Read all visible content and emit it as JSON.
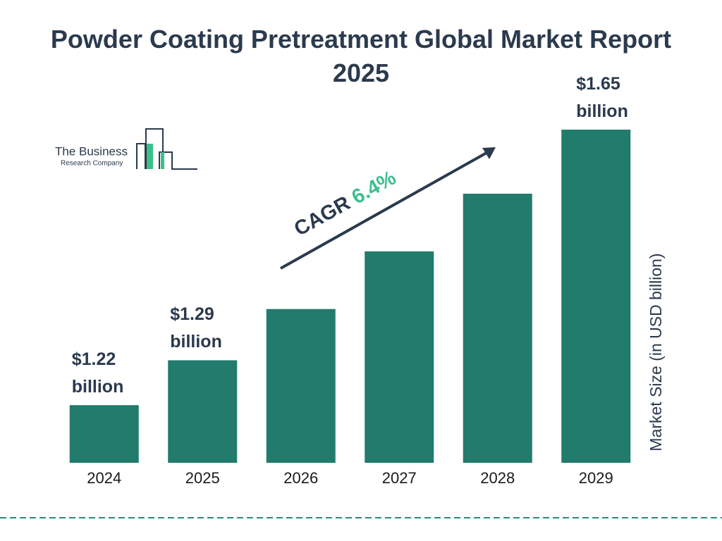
{
  "chart_data": {
    "type": "bar",
    "title": "Powder Coating Pretreatment Global Market Report 2025",
    "logo": {
      "line1": "The Business",
      "line2": "Research Company"
    },
    "categories": [
      "2024",
      "2025",
      "2026",
      "2027",
      "2028",
      "2029"
    ],
    "values": [
      1.22,
      1.29,
      1.37,
      1.46,
      1.55,
      1.65
    ],
    "value_labels": [
      "$1.22 billion",
      "$1.29 billion",
      null,
      null,
      null,
      "$1.65 billion"
    ],
    "color": "#217c6c",
    "ylim": [
      1.13,
      1.65
    ],
    "y_label": "Market Size (in USD billion)",
    "annotation": {
      "label": "CAGR",
      "value": "6.4%"
    }
  }
}
